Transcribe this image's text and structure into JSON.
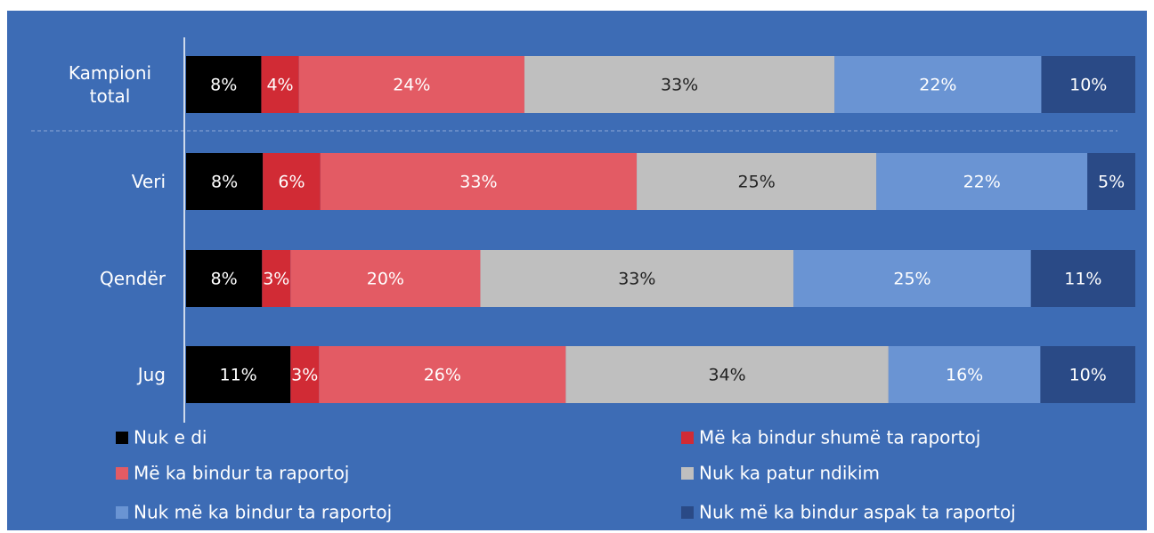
{
  "chart_data": {
    "type": "stacked-bar-horizontal",
    "categories": [
      "Kampioni total",
      "Veri",
      "Qendër",
      "Jug"
    ],
    "series": [
      {
        "name": "Nuk e di",
        "color": "#000000",
        "values": [
          8,
          8,
          8,
          11
        ],
        "value_labels": [
          "8%",
          "8%",
          "8%",
          "11%"
        ]
      },
      {
        "name": "Më ka bindur shumë ta raportoj",
        "color": "#d12b35",
        "values": [
          4,
          6,
          3,
          3
        ],
        "value_labels": [
          "4%",
          "6%",
          "3%",
          "3%"
        ]
      },
      {
        "name": "Më ka bindur ta raportoj",
        "color": "#e35b64",
        "values": [
          24,
          33,
          20,
          26
        ],
        "value_labels": [
          "24%",
          "33%",
          "20%",
          "26%"
        ]
      },
      {
        "name": "Nuk ka patur ndikim",
        "color": "#bfbfbf",
        "values": [
          33,
          25,
          33,
          34
        ],
        "value_labels": [
          "33%",
          "25%",
          "33%",
          "34%"
        ]
      },
      {
        "name": "Nuk më ka bindur ta raportoj",
        "color": "#6a94d3",
        "values": [
          22,
          22,
          25,
          16
        ],
        "value_labels": [
          "22%",
          "22%",
          "25%",
          "16%"
        ]
      },
      {
        "name": "Nuk më ka bindur aspak ta raportoj",
        "color": "#2a4a86",
        "values": [
          10,
          5,
          11,
          10
        ],
        "value_labels": [
          "10%",
          "5%",
          "11%",
          "10%"
        ]
      }
    ]
  }
}
